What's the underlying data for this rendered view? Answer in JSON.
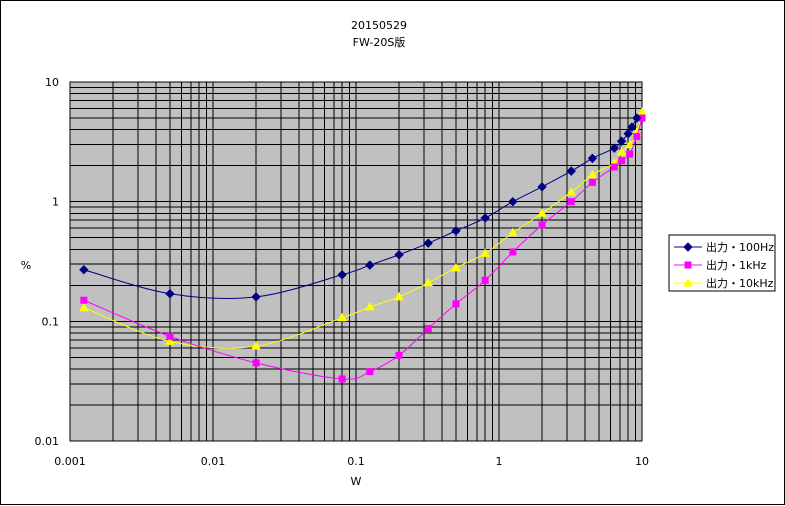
{
  "chart_data": {
    "type": "line",
    "title": "20150529",
    "subtitle": "FW-20S版",
    "xlabel": "W",
    "ylabel": "%",
    "xscale": "log",
    "yscale": "log",
    "xlim": [
      0.001,
      10
    ],
    "ylim": [
      0.01,
      10
    ],
    "x_ticks": [
      "0.001",
      "0.01",
      "0.1",
      "1",
      "10"
    ],
    "y_ticks": [
      "0.01",
      "0.1",
      "1",
      "10"
    ],
    "grid": true,
    "legend_position": "right",
    "plot_background": "#c0c0c0",
    "series": [
      {
        "name": "出力・100Hz",
        "color": "#000080",
        "marker": "diamond",
        "x": [
          0.00125,
          0.005,
          0.02,
          0.08,
          0.125,
          0.2,
          0.32,
          0.5,
          0.8,
          1.25,
          2,
          3.2,
          4.5,
          6.4,
          7.2,
          8,
          8.5,
          9.2
        ],
        "y": [
          0.27,
          0.17,
          0.16,
          0.245,
          0.295,
          0.36,
          0.45,
          0.57,
          0.73,
          1.0,
          1.33,
          1.8,
          2.3,
          2.8,
          3.2,
          3.7,
          4.2,
          5.0
        ]
      },
      {
        "name": "出力・1kHz",
        "color": "#ff00ff",
        "marker": "square",
        "x": [
          0.00125,
          0.005,
          0.02,
          0.08,
          0.125,
          0.2,
          0.32,
          0.5,
          0.8,
          1.25,
          2,
          3.2,
          4.5,
          6.4,
          7.2,
          8.2,
          9.2,
          10
        ],
        "y": [
          0.15,
          0.075,
          0.045,
          0.033,
          0.038,
          0.052,
          0.087,
          0.14,
          0.22,
          0.38,
          0.64,
          1.0,
          1.45,
          1.95,
          2.2,
          2.5,
          3.5,
          5.0
        ]
      },
      {
        "name": "出力・10kHz",
        "color": "#ffff00",
        "marker": "triangle",
        "x": [
          0.00125,
          0.005,
          0.02,
          0.08,
          0.125,
          0.2,
          0.32,
          0.5,
          0.8,
          1.25,
          2,
          3.2,
          4.5,
          6.4,
          7.2,
          8.2,
          9.2,
          10
        ],
        "y": [
          0.13,
          0.068,
          0.062,
          0.107,
          0.132,
          0.16,
          0.21,
          0.28,
          0.37,
          0.55,
          0.8,
          1.2,
          1.68,
          2.1,
          2.6,
          3.0,
          3.8,
          5.6
        ]
      }
    ]
  }
}
